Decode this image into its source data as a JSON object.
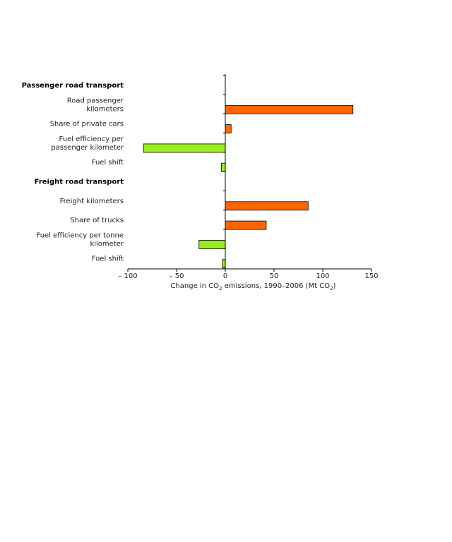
{
  "chart_data": {
    "type": "bar",
    "orientation": "horizontal",
    "rows": [
      {
        "kind": "group",
        "lines": [
          "Passenger road transport"
        ],
        "value": null
      },
      {
        "kind": "bar",
        "lines": [
          "Road passenger",
          "kilometers"
        ],
        "value": 131
      },
      {
        "kind": "bar",
        "lines": [
          "Share of private cars"
        ],
        "value": 6
      },
      {
        "kind": "bar",
        "lines": [
          "Fuel efficiency per",
          "passenger kilometer"
        ],
        "value": -84
      },
      {
        "kind": "bar",
        "lines": [
          "Fuel shift"
        ],
        "value": -4
      },
      {
        "kind": "group",
        "lines": [
          "Freight road transport"
        ],
        "value": null
      },
      {
        "kind": "bar",
        "lines": [
          "Freight kilometers"
        ],
        "value": 85
      },
      {
        "kind": "bar",
        "lines": [
          "Share of trucks"
        ],
        "value": 42
      },
      {
        "kind": "bar",
        "lines": [
          "Fuel efficiency per tonne",
          "kilometer"
        ],
        "value": -27
      },
      {
        "kind": "bar",
        "lines": [
          "Fuel shift"
        ],
        "value": -3
      }
    ],
    "xlim": [
      -100,
      150
    ],
    "xticks": [
      -100,
      -50,
      0,
      50,
      100,
      150
    ],
    "xtick_labels": [
      "– 100",
      "– 50",
      "0",
      "50",
      "100",
      "150"
    ],
    "xlabel": {
      "prefix": "Change in CO",
      "sub1": "2",
      "middle": " emissions, 1990–2006 (Mt CO",
      "sub2": "2",
      "suffix": ")"
    },
    "colors": {
      "positive": "#ff6600",
      "negative": "#99ee22",
      "bar_stroke": "#000000",
      "axis": "#000000"
    },
    "grid": false,
    "legend": "none"
  }
}
